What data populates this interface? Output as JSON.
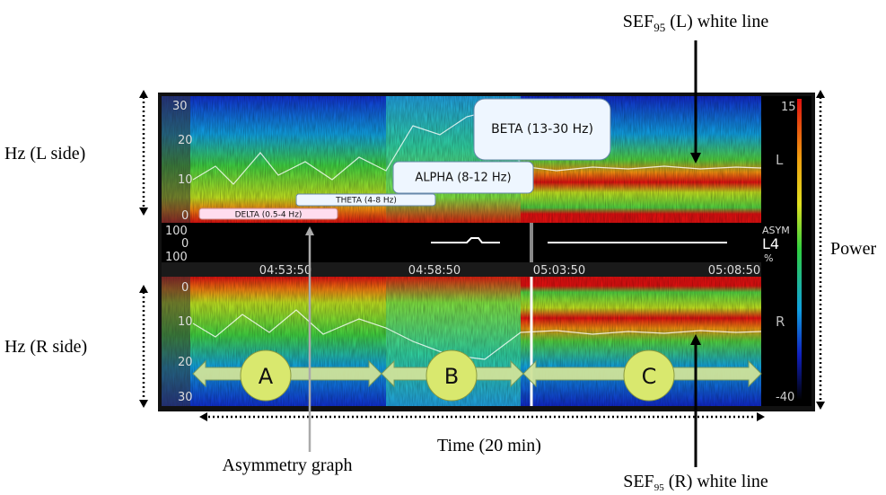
{
  "annotations": {
    "sef_left": {
      "prefix": "SEF",
      "subscript": "95",
      "suffix": " (L) white line"
    },
    "sef_right": {
      "prefix": "SEF",
      "subscript": "95",
      "suffix": " (R) white line"
    },
    "hz_left": "Hz (L side)",
    "hz_right": "Hz (R side)",
    "power": "Power",
    "time": "Time (20 min)",
    "asymmetry": "Asymmetry graph"
  },
  "spectrogram": {
    "left_ticks": [
      "30",
      "20",
      "10",
      "0"
    ],
    "asym_ticks": [
      "100",
      "0",
      "100"
    ],
    "right_ticks": [
      "0",
      "10",
      "20",
      "30"
    ],
    "times": [
      "04:53:50",
      "04:58:50",
      "05:03:50",
      "05:08:50"
    ],
    "scale": {
      "max": "15",
      "left": "L",
      "asym": "ASYM",
      "lead": "L4",
      "unit": "%",
      "right": "R",
      "min": "-40"
    },
    "bands": [
      "DELTA (0.5-4 Hz)",
      "THETA (4-8 Hz)",
      "ALPHA (8-12 Hz)",
      "BETA (13-30 Hz)"
    ],
    "phases": [
      "A",
      "B",
      "C"
    ]
  }
}
